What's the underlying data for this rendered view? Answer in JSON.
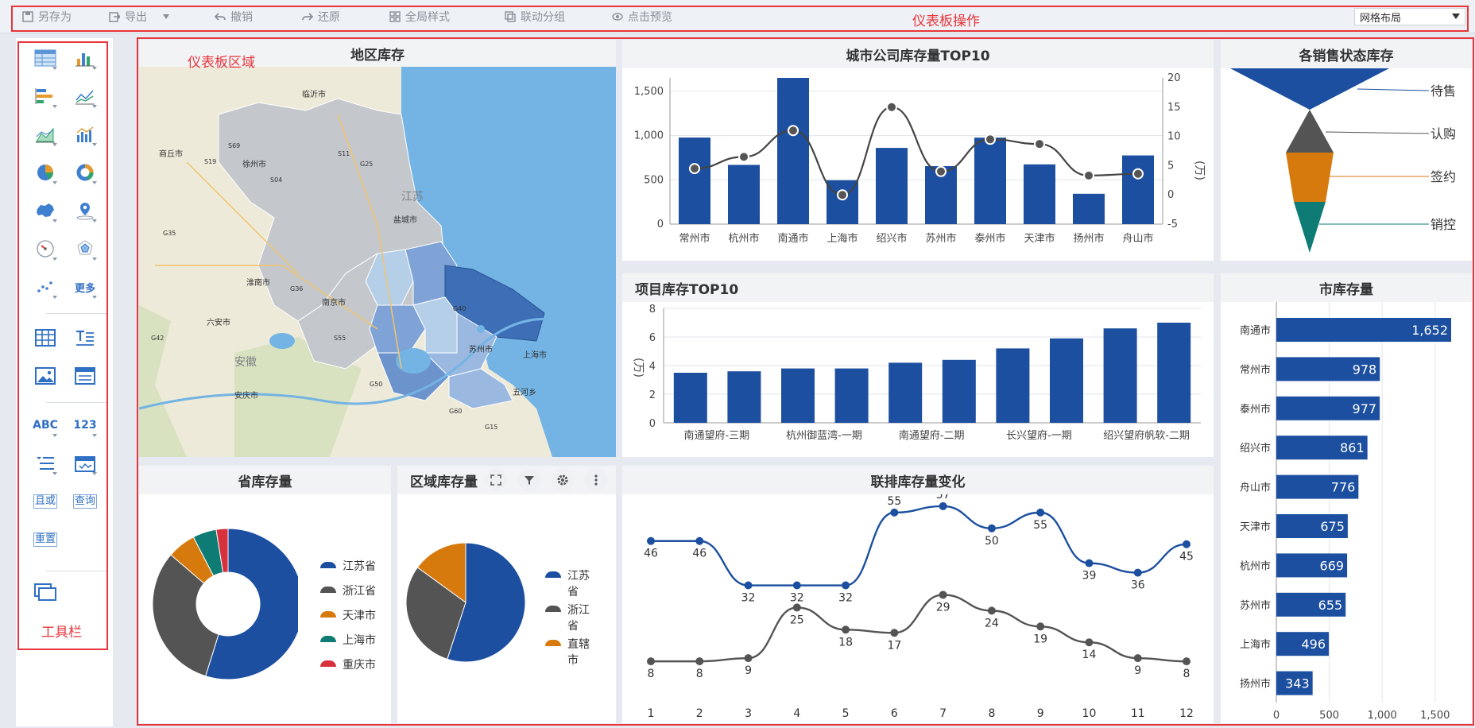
{
  "toolbar": {
    "items": [
      {
        "label": "另存为",
        "icon": "save-as-icon"
      },
      {
        "label": "导出",
        "icon": "export-icon"
      },
      {
        "label": "撤销",
        "icon": "undo-icon"
      },
      {
        "label": "还原",
        "icon": "redo-icon"
      },
      {
        "label": "全局样式",
        "icon": "global-style-icon"
      },
      {
        "label": "联动分组",
        "icon": "link-group-icon"
      },
      {
        "label": "点击预览",
        "icon": "preview-icon"
      }
    ],
    "annotation": "仪表板操作",
    "layout_select": "网格布局"
  },
  "sidebar": {
    "more_label": "更多",
    "text_tools": {
      "abc": "ABC",
      "num": "123",
      "and_or": "且或",
      "query": "查询",
      "reset": "重置"
    },
    "annotation": "工具栏"
  },
  "dashboard": {
    "annotation": "仪表板区域",
    "colors": {
      "blue": "#1c4fa0",
      "gray": "#545454",
      "orange": "#d77a0e",
      "teal": "#0e7b74",
      "red": "#d8313e",
      "map_water": "#73b4e4"
    },
    "map": {
      "title": "地区库存",
      "labels": [
        "临沂市",
        "商丘市",
        "徐州市",
        "江苏",
        "盐城市",
        "淮南市",
        "南京市",
        "六安市",
        "苏州市",
        "上海市",
        "安徽",
        "安庆市",
        "五河乡",
        "G35",
        "G36",
        "G40",
        "G42",
        "G50",
        "G60",
        "G15",
        "S04",
        "S19",
        "S69",
        "G25",
        "S55",
        "S11"
      ]
    },
    "city_top10": {
      "title": "城市公司库存量TOP10",
      "y2_unit": "(万)",
      "chart_data": {
        "type": "bar",
        "categories": [
          "常州市",
          "杭州市",
          "南通市",
          "上海市",
          "绍兴市",
          "苏州市",
          "泰州市",
          "天津市",
          "扬州市",
          "舟山市"
        ],
        "series": [
          {
            "type": "bar",
            "values": [
              978,
              669,
              1652,
              496,
              861,
              655,
              977,
              675,
              343,
              776
            ]
          },
          {
            "type": "line",
            "values": [
              4.5,
              6.5,
              11,
              0,
              15,
              4,
              9.5,
              8.7,
              3.3,
              3.6
            ]
          }
        ],
        "ylim": [
          0,
          1652
        ],
        "yticks": [
          "0",
          "500",
          "1,000",
          "1,500"
        ],
        "y2lim": [
          -5,
          20
        ],
        "y2ticks": [
          "-5",
          "0",
          "5",
          "10",
          "15",
          "20"
        ]
      }
    },
    "sales_status": {
      "title": "各销售状态库存",
      "chart_data": {
        "type": "funnel",
        "categories": [
          "待售",
          "认购",
          "签约",
          "销控"
        ]
      }
    },
    "project_top10": {
      "title": "项目库存TOP10",
      "y_unit": "(万)",
      "chart_data": {
        "type": "bar",
        "categories": [
          "南通望府-三期",
          "",
          "杭州御蓝湾-一期",
          "",
          "南通望府-二期",
          "",
          "长兴望府-一期",
          "",
          "绍兴望府帆软-二期",
          ""
        ],
        "values": [
          3.5,
          3.6,
          3.8,
          3.8,
          4.2,
          4.4,
          5.2,
          5.9,
          6.6,
          7.0
        ],
        "ylim": [
          0,
          8
        ],
        "yticks": [
          "0",
          "2",
          "4",
          "6",
          "8"
        ]
      }
    },
    "city_stock": {
      "title": "市库存量",
      "chart_data": {
        "type": "bar",
        "categories": [
          "南通市",
          "常州市",
          "泰州市",
          "绍兴市",
          "舟山市",
          "天津市",
          "杭州市",
          "苏州市",
          "上海市",
          "扬州市"
        ],
        "values": [
          1652,
          978,
          977,
          861,
          776,
          675,
          669,
          655,
          496,
          343
        ],
        "value_labels": [
          "1,652",
          "978",
          "977",
          "861",
          "776",
          "675",
          "669",
          "655",
          "496",
          "343"
        ],
        "xlim": [
          0,
          1652
        ],
        "xticks": [
          "0",
          "500",
          "1,000",
          "1,500"
        ]
      }
    },
    "province_stock": {
      "title": "省库存量",
      "legend": [
        "江苏省",
        "浙江省",
        "天津市",
        "上海市",
        "重庆市"
      ],
      "chart_data": {
        "type": "pie",
        "categories": [
          "江苏省",
          "浙江省",
          "天津市",
          "上海市",
          "重庆市"
        ],
        "values": [
          54,
          31,
          6,
          5,
          2.5
        ]
      }
    },
    "region_stock": {
      "title": "区域库存量",
      "legend": [
        "江苏省",
        "浙江省",
        "直辖市"
      ],
      "chart_data": {
        "type": "pie",
        "categories": [
          "江苏省",
          "浙江省",
          "直辖市"
        ],
        "values": [
          55,
          30,
          15
        ]
      }
    },
    "joint_stock": {
      "title": "联排库存量变化",
      "chart_data": {
        "type": "line",
        "x": [
          1,
          2,
          3,
          4,
          5,
          6,
          7,
          8,
          9,
          10,
          11,
          12
        ],
        "series": [
          {
            "values": [
              46,
              46,
              32,
              32,
              32,
              55,
              57,
              50,
              55,
              39,
              36,
              45
            ]
          },
          {
            "values": [
              8,
              8,
              9,
              25,
              18,
              17,
              29,
              24,
              19,
              14,
              9,
              8
            ]
          }
        ]
      }
    }
  }
}
